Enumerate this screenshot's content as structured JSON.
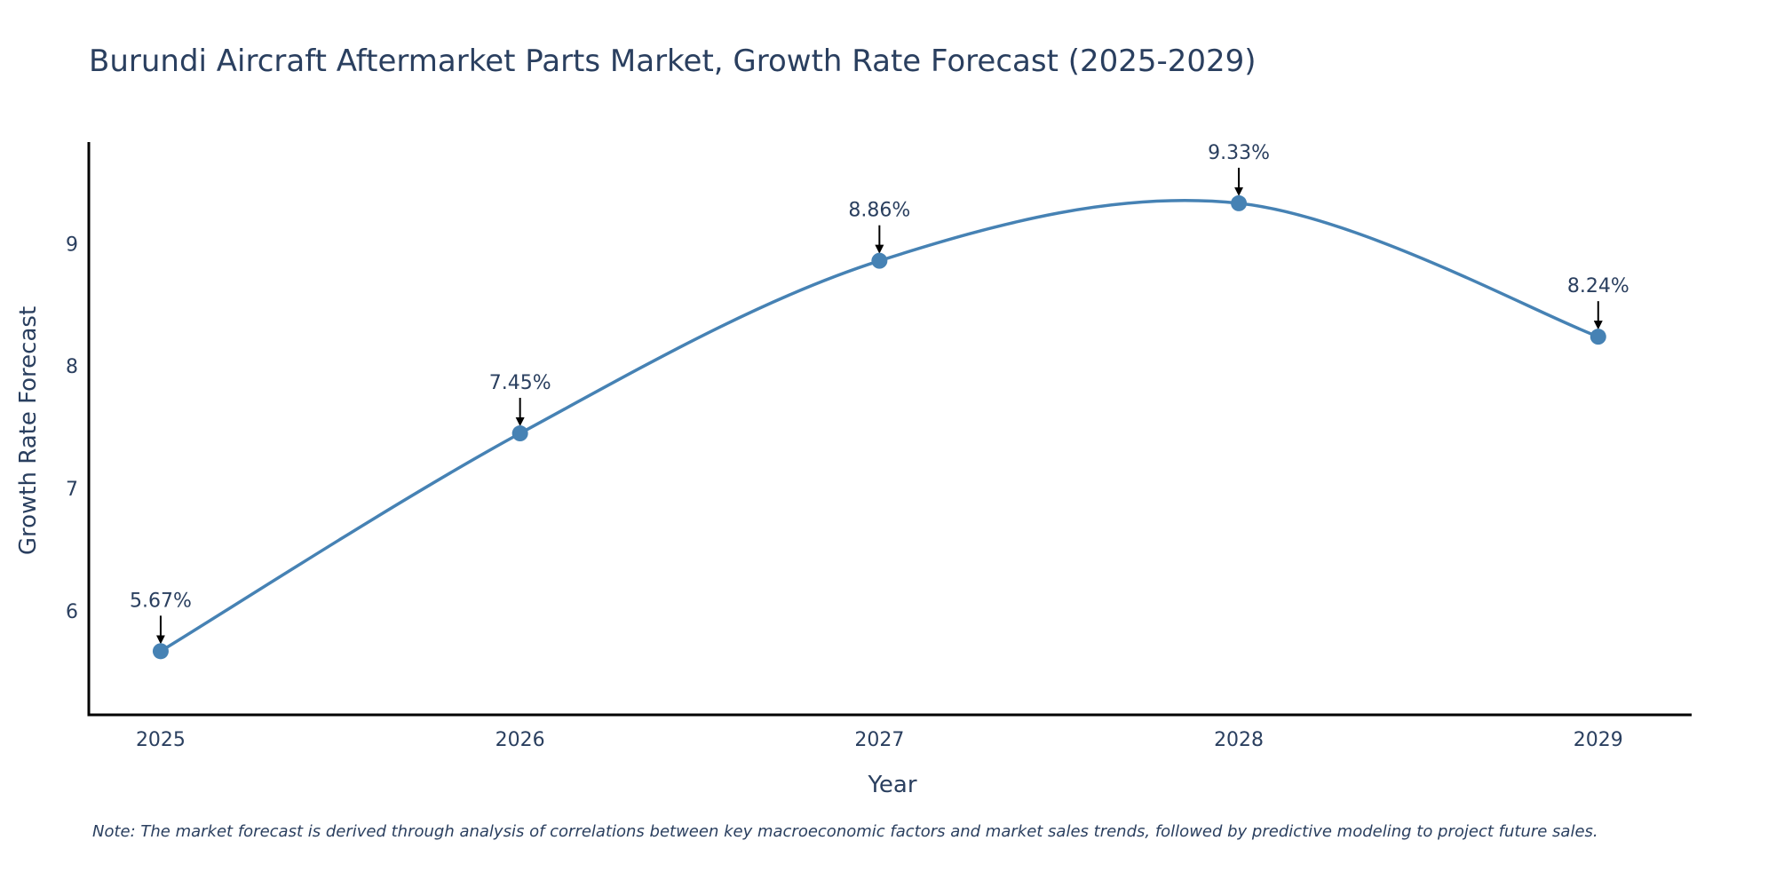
{
  "chart_data": {
    "type": "line",
    "title": "Burundi Aircraft Aftermarket Parts Market, Growth Rate Forecast (2025-2029)",
    "xlabel": "Year",
    "ylabel": "Growth Rate Forecast",
    "categories": [
      "2025",
      "2026",
      "2027",
      "2028",
      "2029"
    ],
    "series": [
      {
        "name": "Growth Rate Forecast",
        "values": [
          5.67,
          7.45,
          8.86,
          9.33,
          8.24
        ],
        "labels": [
          "5.67%",
          "7.45%",
          "8.86%",
          "9.33%",
          "8.24%"
        ]
      }
    ],
    "ylim": [
      5.15,
      9.83
    ],
    "yticks": [
      6,
      7,
      8,
      9
    ],
    "ytick_labels": [
      "6",
      "7",
      "8",
      "9"
    ],
    "xlim": [
      -0.2,
      4.26
    ],
    "grid": false,
    "line_color": "#4682B4",
    "arrow_color": "#000000",
    "axis_color": "#000000",
    "text_color": "#2a3f5f",
    "line_shape": "spline"
  },
  "note": "Note: The market forecast is derived through analysis of correlations between key macroeconomic factors and market sales trends, followed by predictive modeling to project future sales."
}
